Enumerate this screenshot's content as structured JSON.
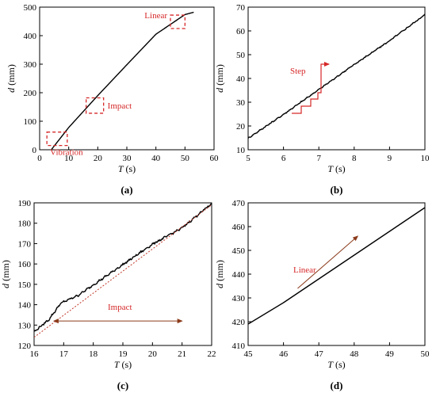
{
  "colors": {
    "curve": "#000000",
    "annotation": "#d62728",
    "arrow": "#8b3a1a",
    "dotted": "#c0392b"
  },
  "chart_data": [
    {
      "panel_label": "(a)",
      "type": "line",
      "xlabel": "T (s)",
      "ylabel": "d (mm)",
      "xlim": [
        0,
        60
      ],
      "ylim": [
        0,
        500
      ],
      "xticks": [
        0,
        10,
        20,
        30,
        40,
        50,
        60
      ],
      "yticks": [
        0,
        100,
        200,
        300,
        400,
        500
      ],
      "grid": false,
      "series": [
        {
          "x": [
            4,
            10,
            20,
            30,
            40,
            50,
            53
          ],
          "y": [
            0,
            78,
            190,
            298,
            405,
            474,
            482
          ]
        }
      ],
      "annotations": [
        {
          "text": "Vibration",
          "box_x": [
            2.5,
            9.5
          ],
          "box_y": [
            15,
            62
          ]
        },
        {
          "text": "Impact",
          "box_x": [
            16,
            22
          ],
          "box_y": [
            128,
            182
          ]
        },
        {
          "text": "Linear",
          "box_x": [
            45,
            50
          ],
          "box_y": [
            425,
            472
          ]
        }
      ]
    },
    {
      "panel_label": "(b)",
      "type": "line",
      "xlabel": "T (s)",
      "ylabel": "d (mm)",
      "xlim": [
        5,
        10
      ],
      "ylim": [
        10,
        70
      ],
      "xticks": [
        5,
        6,
        7,
        8,
        9,
        10
      ],
      "yticks": [
        10,
        20,
        30,
        40,
        50,
        60,
        70
      ],
      "grid": false,
      "series": [
        {
          "x": [
            5,
            6,
            7,
            8,
            9,
            10
          ],
          "y": [
            15,
            25,
            35.5,
            46,
            56,
            67
          ]
        }
      ],
      "annotations": [
        {
          "text": "Step"
        }
      ]
    },
    {
      "panel_label": "(c)",
      "type": "line",
      "xlabel": "T (s)",
      "ylabel": "d (mm)",
      "xlim": [
        16,
        22
      ],
      "ylim": [
        120,
        190
      ],
      "xticks": [
        16,
        17,
        18,
        19,
        20,
        21,
        22
      ],
      "yticks": [
        120,
        130,
        140,
        150,
        160,
        170,
        180,
        190
      ],
      "grid": false,
      "series": [
        {
          "style": "solid",
          "x": [
            16,
            16.5,
            16.9,
            17.5,
            18,
            18.5,
            19,
            19.5,
            20,
            20.5,
            21,
            21.5,
            22
          ],
          "y": [
            127,
            133,
            141,
            145,
            150,
            155,
            160,
            165,
            170,
            174,
            178,
            184,
            190
          ]
        },
        {
          "style": "dotted",
          "x": [
            16,
            22
          ],
          "y": [
            124,
            189
          ]
        }
      ],
      "annotations": [
        {
          "text": "Impact",
          "arrow_x": [
            16.8,
            21
          ],
          "arrow_y": 132
        }
      ]
    },
    {
      "panel_label": "(d)",
      "type": "line",
      "xlabel": "T (s)",
      "ylabel": "d (mm)",
      "xlim": [
        45,
        50
      ],
      "ylim": [
        410,
        470
      ],
      "xticks": [
        45,
        46,
        47,
        48,
        49,
        50
      ],
      "yticks": [
        410,
        420,
        430,
        440,
        450,
        460,
        470
      ],
      "grid": false,
      "series": [
        {
          "x": [
            45,
            46,
            47,
            48,
            49,
            50
          ],
          "y": [
            419,
            428,
            438,
            448,
            458,
            468
          ]
        }
      ],
      "annotations": [
        {
          "text": "Linear",
          "arrow_x": [
            46.4,
            48.1
          ],
          "arrow_y": [
            434,
            456
          ]
        }
      ]
    }
  ]
}
